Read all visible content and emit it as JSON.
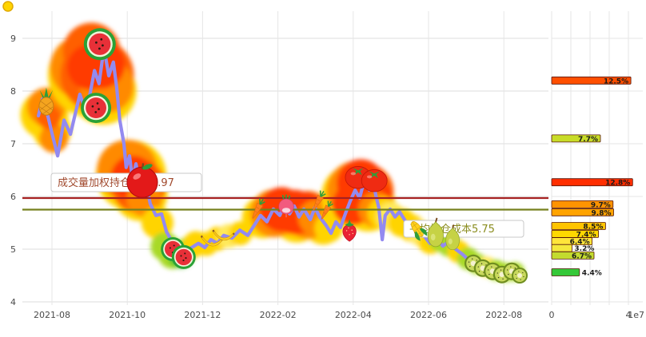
{
  "chart_data": [
    {
      "type": "line",
      "title": "",
      "xlabel": "",
      "ylabel": "",
      "grid": true,
      "ylim": [
        3.9,
        9.5
      ],
      "y_ticks": [
        4,
        5,
        6,
        7,
        8,
        9
      ],
      "x_ticks": [
        {
          "label": "2021-08",
          "m": 1
        },
        {
          "label": "2021-10",
          "m": 3
        },
        {
          "label": "2021-12",
          "m": 5
        },
        {
          "label": "2022-02",
          "m": 7
        },
        {
          "label": "2022-04",
          "m": 9
        },
        {
          "label": "2022-06",
          "m": 11
        },
        {
          "label": "2022-08",
          "m": 13
        }
      ],
      "hlines": [
        {
          "value": 5.97,
          "label": "成交量加权持仓成本5.97",
          "color": "#a62121",
          "label_color": "#a14a2e"
        },
        {
          "value": 5.75,
          "label": "平均持仓成本5.75",
          "color": "#76801e",
          "label_color": "#8a8c1e"
        }
      ],
      "series": [
        {
          "name": "price",
          "color": "#938af0",
          "points": [
            [
              0.64,
              7.53
            ],
            [
              0.75,
              7.85
            ],
            [
              0.9,
              7.5
            ],
            [
              1.0,
              7.2
            ],
            [
              1.15,
              6.77
            ],
            [
              1.32,
              7.45
            ],
            [
              1.49,
              7.18
            ],
            [
              1.74,
              7.94
            ],
            [
              1.91,
              7.58
            ],
            [
              2.13,
              8.39
            ],
            [
              2.25,
              8.14
            ],
            [
              2.38,
              8.82
            ],
            [
              2.51,
              8.29
            ],
            [
              2.63,
              8.55
            ],
            [
              2.72,
              8.06
            ],
            [
              2.8,
              7.45
            ],
            [
              2.91,
              7.0
            ],
            [
              2.97,
              6.55
            ],
            [
              3.06,
              6.77
            ],
            [
              3.14,
              6.32
            ],
            [
              3.23,
              6.62
            ],
            [
              3.36,
              6.17
            ],
            [
              3.48,
              6.32
            ],
            [
              3.61,
              5.86
            ],
            [
              3.76,
              5.64
            ],
            [
              3.91,
              5.67
            ],
            [
              4.04,
              5.33
            ],
            [
              4.16,
              5.18
            ],
            [
              4.29,
              4.91
            ],
            [
              4.42,
              4.79
            ],
            [
              4.55,
              4.95
            ],
            [
              4.71,
              5.03
            ],
            [
              4.89,
              5.11
            ],
            [
              5.06,
              5.03
            ],
            [
              5.22,
              5.18
            ],
            [
              5.39,
              5.11
            ],
            [
              5.56,
              5.26
            ],
            [
              5.78,
              5.21
            ],
            [
              5.99,
              5.36
            ],
            [
              6.2,
              5.26
            ],
            [
              6.37,
              5.45
            ],
            [
              6.54,
              5.64
            ],
            [
              6.71,
              5.52
            ],
            [
              6.88,
              5.76
            ],
            [
              7.05,
              5.64
            ],
            [
              7.18,
              5.86
            ],
            [
              7.31,
              5.67
            ],
            [
              7.43,
              5.82
            ],
            [
              7.56,
              5.61
            ],
            [
              7.69,
              5.76
            ],
            [
              7.86,
              5.56
            ],
            [
              7.98,
              5.79
            ],
            [
              8.11,
              5.61
            ],
            [
              8.28,
              5.45
            ],
            [
              8.41,
              5.3
            ],
            [
              8.54,
              5.52
            ],
            [
              8.66,
              5.41
            ],
            [
              8.79,
              5.67
            ],
            [
              8.92,
              5.91
            ],
            [
              9.05,
              6.12
            ],
            [
              9.17,
              5.97
            ],
            [
              9.3,
              6.32
            ],
            [
              9.43,
              6.12
            ],
            [
              9.51,
              6.36
            ],
            [
              9.6,
              6.02
            ],
            [
              9.68,
              5.79
            ],
            [
              9.77,
              5.18
            ],
            [
              9.85,
              5.64
            ],
            [
              9.98,
              5.76
            ],
            [
              10.11,
              5.61
            ],
            [
              10.23,
              5.71
            ],
            [
              10.4,
              5.52
            ],
            [
              10.57,
              5.36
            ],
            [
              10.74,
              5.44
            ],
            [
              10.87,
              5.26
            ],
            [
              11.04,
              5.11
            ],
            [
              11.21,
              5.21
            ],
            [
              11.38,
              5.06
            ],
            [
              11.55,
              5.15
            ],
            [
              11.72,
              5.0
            ],
            [
              11.89,
              4.91
            ],
            [
              12.06,
              4.8
            ],
            [
              12.23,
              4.73
            ],
            [
              12.4,
              4.65
            ],
            [
              12.61,
              4.7
            ],
            [
              12.82,
              4.61
            ],
            [
              13.03,
              4.55
            ],
            [
              13.25,
              4.61
            ],
            [
              13.42,
              4.5
            ]
          ]
        }
      ],
      "blobs": [
        [
          0.8,
          7.55,
          30,
          "#ffd400"
        ],
        [
          1.0,
          7.25,
          24,
          "#ffd400"
        ],
        [
          0.85,
          7.7,
          24,
          "#ff8a00"
        ],
        [
          1.05,
          7.1,
          18,
          "#ff8a00"
        ],
        [
          0.92,
          7.5,
          15,
          "#ff5f00"
        ],
        [
          2.0,
          8.3,
          52,
          "#ffd400"
        ],
        [
          2.35,
          8.0,
          42,
          "#ffd400"
        ],
        [
          1.8,
          8.45,
          40,
          "#ff8a00"
        ],
        [
          2.2,
          8.3,
          46,
          "#ff5f00"
        ],
        [
          2.45,
          8.1,
          34,
          "#ff8a00"
        ],
        [
          2.05,
          8.75,
          36,
          "#ff5f00"
        ],
        [
          2.3,
          8.5,
          30,
          "#ff3b00"
        ],
        [
          2.0,
          8.45,
          28,
          "#ff3b00"
        ],
        [
          3.1,
          6.4,
          44,
          "#ffd400"
        ],
        [
          3.35,
          6.05,
          34,
          "#ffd400"
        ],
        [
          3.0,
          6.5,
          38,
          "#ff8a00"
        ],
        [
          3.3,
          6.2,
          34,
          "#ff5f00"
        ],
        [
          3.15,
          6.35,
          28,
          "#ff3b00"
        ],
        [
          3.45,
          5.95,
          22,
          "#ff8a00"
        ],
        [
          3.8,
          5.5,
          20,
          "#ffd400"
        ],
        [
          4.0,
          5.05,
          18,
          "#a8d926"
        ],
        [
          4.2,
          4.9,
          18,
          "#a8d926"
        ],
        [
          4.42,
          4.88,
          16,
          "#53c234"
        ],
        [
          4.6,
          5.0,
          15,
          "#a8d926"
        ],
        [
          4.82,
          5.1,
          16,
          "#ffd400"
        ],
        [
          5.1,
          5.1,
          15,
          "#ffd400"
        ],
        [
          5.4,
          5.2,
          15,
          "#ffd400"
        ],
        [
          5.7,
          5.25,
          15,
          "#ffe95c"
        ],
        [
          6.0,
          5.3,
          15,
          "#ffd400"
        ],
        [
          6.6,
          5.6,
          26,
          "#ffd400"
        ],
        [
          7.5,
          5.58,
          30,
          "#ffd400"
        ],
        [
          8.2,
          5.45,
          24,
          "#ffd400"
        ],
        [
          6.9,
          5.68,
          30,
          "#ff8a00"
        ],
        [
          7.8,
          5.65,
          30,
          "#ff8a00"
        ],
        [
          7.1,
          5.75,
          28,
          "#ff3b00"
        ],
        [
          7.45,
          5.7,
          28,
          "#ff3b00"
        ],
        [
          7.75,
          5.7,
          26,
          "#ff3b00"
        ],
        [
          8.0,
          5.6,
          22,
          "#ff8a00"
        ],
        [
          8.35,
          5.4,
          18,
          "#ffd400"
        ],
        [
          9.0,
          6.0,
          40,
          "#ffd400"
        ],
        [
          9.4,
          5.85,
          34,
          "#ffd400"
        ],
        [
          9.1,
          6.1,
          38,
          "#ff8a00"
        ],
        [
          9.35,
          6.1,
          34,
          "#ff5f00"
        ],
        [
          9.2,
          6.25,
          30,
          "#ff3b00"
        ],
        [
          9.45,
          5.95,
          28,
          "#ff3b00"
        ],
        [
          9.0,
          5.85,
          26,
          "#ff3b00"
        ],
        [
          9.6,
          5.75,
          22,
          "#ff8a00"
        ],
        [
          9.8,
          5.68,
          20,
          "#ffd400"
        ],
        [
          10.0,
          5.62,
          18,
          "#ffe95c"
        ],
        [
          10.3,
          5.5,
          18,
          "#ffd400"
        ],
        [
          10.55,
          5.4,
          17,
          "#ffd400"
        ],
        [
          10.8,
          5.3,
          16,
          "#ffe95c"
        ],
        [
          11.05,
          5.15,
          16,
          "#ffd400"
        ],
        [
          11.3,
          5.18,
          15,
          "#a8d926"
        ],
        [
          11.55,
          5.08,
          15,
          "#a8d926"
        ],
        [
          11.8,
          4.95,
          14,
          "#ffd400"
        ],
        [
          12.05,
          4.82,
          14,
          "#a8d926"
        ],
        [
          12.3,
          4.72,
          13,
          "#a8d926"
        ],
        [
          12.55,
          4.66,
          13,
          "#ffe95c"
        ],
        [
          12.8,
          4.6,
          13,
          "#a8d926"
        ],
        [
          13.05,
          4.56,
          12,
          "#a8d926"
        ],
        [
          13.3,
          4.57,
          12,
          "#a8d926"
        ]
      ],
      "fruits": [
        [
          0.85,
          7.78,
          "pineapple",
          15
        ],
        [
          2.17,
          7.68,
          "watermelon",
          19
        ],
        [
          2.27,
          8.89,
          "watermelon",
          20
        ],
        [
          3.4,
          6.27,
          "apple",
          19
        ],
        [
          4.21,
          5.0,
          "watermelon",
          15
        ],
        [
          4.5,
          4.85,
          "watermelon",
          15
        ],
        [
          5.25,
          5.18,
          "banana",
          14
        ],
        [
          5.56,
          5.29,
          "banana",
          14
        ],
        [
          6.46,
          5.76,
          "carrot",
          13
        ],
        [
          7.22,
          5.82,
          "radish",
          13
        ],
        [
          8.07,
          5.91,
          "carrot",
          13
        ],
        [
          8.28,
          5.73,
          "carrot",
          12
        ],
        [
          8.9,
          5.36,
          "strawberry",
          14
        ],
        [
          9.13,
          6.36,
          "tomato",
          16
        ],
        [
          9.56,
          6.3,
          "tomato",
          16
        ],
        [
          10.7,
          5.38,
          "corn",
          13
        ],
        [
          11.19,
          5.29,
          "pear",
          16
        ],
        [
          11.64,
          5.2,
          "pear",
          14
        ],
        [
          12.19,
          4.73,
          "kiwi",
          11
        ],
        [
          12.44,
          4.64,
          "kiwi",
          11
        ],
        [
          12.7,
          4.58,
          "kiwi",
          11
        ],
        [
          12.95,
          4.52,
          "kiwi",
          11
        ],
        [
          13.21,
          4.58,
          "kiwi",
          11
        ],
        [
          13.42,
          4.5,
          "kiwi",
          10
        ]
      ]
    },
    {
      "type": "bar",
      "orientation": "horizontal",
      "title": "",
      "xlim": [
        0,
        40000000
      ],
      "x_ticks": [
        {
          "label": "0",
          "v": 0
        },
        {
          "label": "4",
          "v": 40000000
        }
      ],
      "offset_label": "1e7",
      "bars": [
        {
          "price": 8.2,
          "value": 41300000,
          "pct": "12.5%",
          "color": "#ff4f00"
        },
        {
          "price": 7.1,
          "value": 25400000,
          "pct": "7.7%",
          "color": "#c8dc28"
        },
        {
          "price": 6.27,
          "value": 42200000,
          "pct": "12.8%",
          "color": "#ff2e00"
        },
        {
          "price": 5.85,
          "value": 32000000,
          "pct": "9.7%",
          "color": "#ff9300"
        },
        {
          "price": 5.7,
          "value": 32300000,
          "pct": "9.8%",
          "color": "#ffa300"
        },
        {
          "price": 5.44,
          "value": 28100000,
          "pct": "8.5%",
          "color": "#ffc400"
        },
        {
          "price": 5.29,
          "value": 24400000,
          "pct": "7.4%",
          "color": "#ffd800"
        },
        {
          "price": 5.15,
          "value": 21100000,
          "pct": "6.4%",
          "color": "#ffe53a"
        },
        {
          "price": 5.02,
          "value": 10600000,
          "pct": "3.2%",
          "color": "#f4e83c"
        },
        {
          "price": 4.88,
          "value": 22100000,
          "pct": "6.7%",
          "color": "#c3db2e"
        },
        {
          "price": 4.56,
          "value": 14500000,
          "pct": "4.4%",
          "color": "#35c838"
        }
      ]
    }
  ]
}
